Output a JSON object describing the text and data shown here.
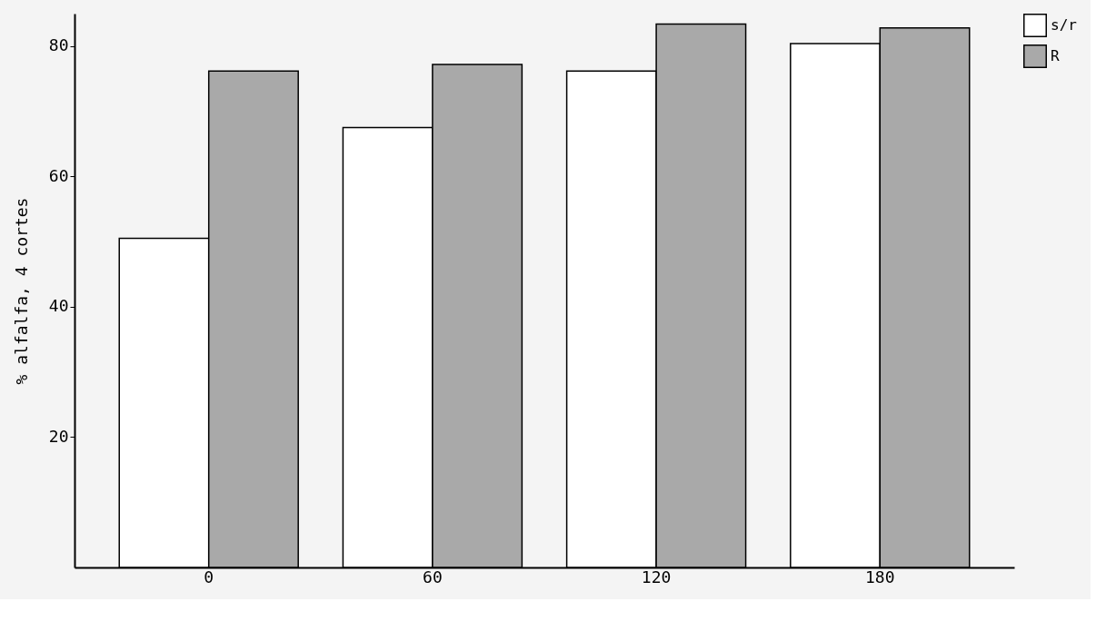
{
  "chart_data": {
    "type": "bar",
    "ylabel": "% alfalfa,  4 cortes",
    "categories": [
      "0",
      "60",
      "120",
      "180"
    ],
    "series": [
      {
        "name": "s/r",
        "color": "#ffffff",
        "values": [
          50.5,
          67.5,
          76.2,
          80.4
        ]
      },
      {
        "name": "R",
        "color": "#a9a9a9",
        "values": [
          76.2,
          77.2,
          83.4,
          82.8
        ]
      }
    ],
    "ylim": [
      0,
      85
    ],
    "yticks": [
      20,
      40,
      60,
      80
    ],
    "grid": false,
    "legend": "top right"
  }
}
